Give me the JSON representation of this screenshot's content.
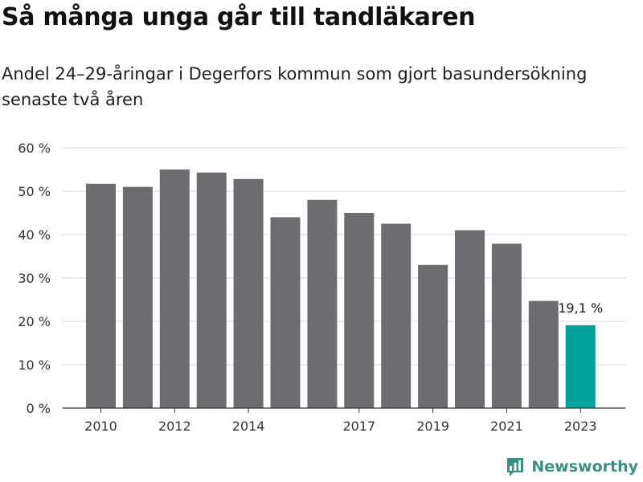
{
  "title": "Så många unga går till tandläkaren",
  "subtitle": "Andel 24–29-åringar i Degerfors kommun som gjort basundersökning senaste två åren",
  "brand": {
    "name": "Newsworthy",
    "logo_icon": "newsworthy-logo-icon"
  },
  "colors": {
    "bar": "#6d6c71",
    "highlight": "#00a39a",
    "grid": "#d9d9d9",
    "axis": "#333333",
    "brand": "#3a8f87"
  },
  "chart_data": {
    "type": "bar",
    "categories": [
      "2010",
      "2011",
      "2012",
      "2013",
      "2014",
      "2015",
      "2016",
      "2017",
      "2018",
      "2019",
      "2020",
      "2021",
      "2022",
      "2023"
    ],
    "values": [
      51.7,
      51.0,
      55.0,
      54.3,
      52.8,
      44.0,
      48.0,
      45.0,
      42.5,
      33.0,
      41.0,
      37.9,
      24.7,
      19.1
    ],
    "x_tick_labels": [
      "2010",
      "2012",
      "2014",
      "2017",
      "2019",
      "2021",
      "2023"
    ],
    "y_ticks": [
      0,
      10,
      20,
      30,
      40,
      50,
      60
    ],
    "y_tick_labels": [
      "0 %",
      "10 %",
      "20 %",
      "30 %",
      "40 %",
      "50 %",
      "60 %"
    ],
    "ylim": [
      0,
      60
    ],
    "grid": true,
    "highlight_category": "2023",
    "data_labels": [
      {
        "category": "2023",
        "text": "19,1 %"
      }
    ],
    "title": "",
    "xlabel": "",
    "ylabel": ""
  }
}
